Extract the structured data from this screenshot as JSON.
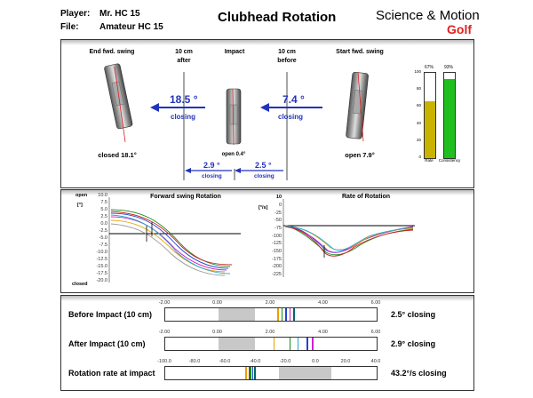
{
  "header": {
    "player_label": "Player:",
    "player_value": "Mr. HC 15",
    "file_label": "File:",
    "file_value": "Amateur HC 15",
    "title": "Clubhead Rotation",
    "brand_top": "Science & Motion",
    "brand_bottom": "Golf"
  },
  "top_panel": {
    "end_label": "End fwd. swing",
    "after_label_1": "10 cm",
    "after_label_2": "after",
    "impact_label": "Impact",
    "before_label_1": "10 cm",
    "before_label_2": "before",
    "start_label": "Start fwd. swing",
    "after_value": "18.5 °",
    "after_word": "closing",
    "before_value": "7.4 °",
    "before_word": "closing",
    "inner_left_value": "2.9 °",
    "inner_left_word": "closing",
    "inner_right_value": "2.5 °",
    "inner_right_word": "closing",
    "end_status": "closed 18.1°",
    "impact_status": "open 0.4°",
    "start_status": "open 7.9°",
    "bars": {
      "left_pct_label": "67%",
      "right_pct_label": "93%",
      "left_level": 0.67,
      "right_level": 0.93,
      "left_caption": "Rate",
      "right_caption": "Consistency",
      "left_color": "#c8b400",
      "right_color": "#1fbf1f",
      "ticks": [
        "100",
        "80",
        "60",
        "40",
        "20",
        "0"
      ]
    }
  },
  "middle_panel": {
    "left_title": "Forward swing Rotation",
    "left_y_top": "open",
    "left_y_unit": "[°]",
    "left_y_bottom": "closed",
    "left_ticks": [
      "10.0",
      "7.5",
      "5.0",
      "2.5",
      "0.0",
      "-2.5",
      "-5.0",
      "-7.5",
      "-10.0",
      "-12.5",
      "-15.0",
      "-17.5",
      "-20.0"
    ],
    "right_title": "Rate of Rotation",
    "right_y_top": "10",
    "right_y_unit": "[°/s]",
    "right_ticks": [
      "0",
      "-25",
      "-50",
      "-75",
      "-100",
      "-125",
      "-150",
      "-175",
      "-200",
      "-225"
    ]
  },
  "bottom_panel": {
    "rows": [
      {
        "label": "Before Impact (10 cm)",
        "value": "2.5° closing",
        "ticks": [
          "-2.00",
          "0.00",
          "2.00",
          "4.00",
          "6.00"
        ],
        "min": -2,
        "max": 6,
        "shade": [
          0,
          1.4
        ],
        "lines": [
          {
            "v": 2.25,
            "c": "#e8a000"
          },
          {
            "v": 2.4,
            "c": "#1a8a1a"
          },
          {
            "v": 2.55,
            "c": "#2244cc"
          },
          {
            "v": 2.7,
            "c": "#cc22cc"
          },
          {
            "v": 2.85,
            "c": "#006666"
          }
        ]
      },
      {
        "label": "After Impact (10 cm)",
        "value": "2.9° closing",
        "ticks": [
          "-2.00",
          "0.00",
          "2.00",
          "4.00",
          "6.00"
        ],
        "min": -2,
        "max": 6,
        "shade": [
          0,
          1.4
        ],
        "lines": [
          {
            "v": 2.1,
            "c": "#e8a000"
          },
          {
            "v": 2.7,
            "c": "#1a8a1a"
          },
          {
            "v": 3.0,
            "c": "#22aacc"
          },
          {
            "v": 3.35,
            "c": "#2244cc"
          },
          {
            "v": 3.55,
            "c": "#cc22cc"
          }
        ]
      },
      {
        "label": "Rotation rate at impact",
        "value": "43.2°/s closing",
        "ticks": [
          "-100.0",
          "-80.0",
          "-60.0",
          "-40.0",
          "-20.0",
          "0.0",
          "20.0",
          "40.0"
        ],
        "min": -100,
        "max": 40,
        "shade": [
          -25,
          10
        ],
        "lines": [
          {
            "v": -47,
            "c": "#e8a000"
          },
          {
            "v": -45,
            "c": "#cc2222"
          },
          {
            "v": -44,
            "c": "#1a8a1a"
          },
          {
            "v": -42.5,
            "c": "#2244cc"
          },
          {
            "v": -41,
            "c": "#006666"
          }
        ]
      }
    ]
  }
}
